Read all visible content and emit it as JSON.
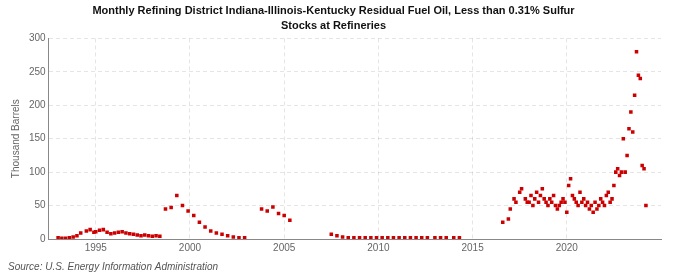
{
  "chart_data": {
    "type": "scatter",
    "title": "Monthly Refining District Indiana-Illinois-Kentucky Residual Fuel Oil, Less than 0.31% Sulfur",
    "subtitle": "Stocks at Refineries",
    "ylabel": "Thousand Barrels",
    "annotations": [
      "Source: U.S. Energy Information Administration"
    ],
    "color": "#cc0000",
    "marker": "square",
    "grid": true,
    "xlim": [
      1992.5,
      2025
    ],
    "ylim": [
      0,
      300
    ],
    "xticks": [
      1995,
      2000,
      2005,
      2010,
      2015,
      2020
    ],
    "yticks": [
      0,
      50,
      100,
      150,
      200,
      250,
      300
    ],
    "x": [
      1993.0,
      1993.2,
      1993.4,
      1993.6,
      1993.8,
      1994.0,
      1994.2,
      1994.5,
      1994.7,
      1994.9,
      1995.0,
      1995.2,
      1995.4,
      1995.6,
      1995.8,
      1996.0,
      1996.2,
      1996.4,
      1996.6,
      1996.8,
      1997.0,
      1997.2,
      1997.4,
      1997.6,
      1997.8,
      1998.0,
      1998.2,
      1998.4,
      1998.7,
      1999.0,
      1999.3,
      1999.6,
      1999.9,
      2000.2,
      2000.5,
      2000.8,
      2001.1,
      2001.4,
      2001.7,
      2002.0,
      2002.3,
      2002.6,
      2002.9,
      2003.8,
      2004.1,
      2004.4,
      2004.7,
      2005.0,
      2005.3,
      2007.5,
      2007.8,
      2008.1,
      2008.4,
      2008.7,
      2009.0,
      2009.3,
      2009.6,
      2009.9,
      2010.2,
      2010.5,
      2010.8,
      2011.1,
      2011.4,
      2011.7,
      2012.0,
      2012.3,
      2012.6,
      2013.0,
      2013.3,
      2013.6,
      2014.0,
      2014.3,
      2016.6,
      2016.9,
      2017.0,
      2017.2,
      2017.3,
      2017.5,
      2017.6,
      2017.8,
      2017.9,
      2018.0,
      2018.1,
      2018.2,
      2018.3,
      2018.4,
      2018.5,
      2018.6,
      2018.7,
      2018.8,
      2018.9,
      2019.0,
      2019.1,
      2019.2,
      2019.3,
      2019.4,
      2019.5,
      2019.6,
      2019.7,
      2019.8,
      2019.9,
      2020.0,
      2020.1,
      2020.2,
      2020.3,
      2020.4,
      2020.5,
      2020.6,
      2020.7,
      2020.8,
      2020.9,
      2021.0,
      2021.1,
      2021.2,
      2021.3,
      2021.4,
      2021.5,
      2021.6,
      2021.7,
      2021.8,
      2021.9,
      2022.0,
      2022.1,
      2022.2,
      2022.3,
      2022.4,
      2022.5,
      2022.6,
      2022.7,
      2022.8,
      2022.9,
      2023.0,
      2023.1,
      2023.2,
      2023.3,
      2023.4,
      2023.5,
      2023.6,
      2023.7,
      2023.8,
      2023.9,
      2024.0,
      2024.1,
      2024.2
    ],
    "values": [
      2,
      1,
      1,
      2,
      3,
      5,
      9,
      12,
      14,
      10,
      11,
      13,
      14,
      10,
      8,
      9,
      10,
      11,
      9,
      8,
      7,
      6,
      5,
      6,
      5,
      4,
      5,
      4,
      45,
      47,
      65,
      50,
      42,
      35,
      25,
      18,
      12,
      9,
      7,
      5,
      3,
      2,
      2,
      45,
      42,
      48,
      38,
      35,
      28,
      7,
      5,
      3,
      2,
      2,
      2,
      2,
      2,
      2,
      2,
      2,
      2,
      2,
      2,
      2,
      2,
      2,
      2,
      2,
      2,
      2,
      2,
      2,
      25,
      30,
      45,
      60,
      55,
      70,
      75,
      60,
      55,
      55,
      65,
      50,
      60,
      70,
      55,
      65,
      75,
      60,
      55,
      50,
      60,
      55,
      65,
      50,
      45,
      50,
      55,
      60,
      55,
      40,
      80,
      90,
      65,
      60,
      55,
      50,
      70,
      55,
      60,
      50,
      55,
      45,
      50,
      40,
      55,
      45,
      50,
      60,
      55,
      50,
      65,
      70,
      55,
      60,
      80,
      100,
      105,
      95,
      100,
      150,
      100,
      125,
      165,
      190,
      160,
      215,
      280,
      245,
      240,
      110,
      105,
      50
    ]
  }
}
